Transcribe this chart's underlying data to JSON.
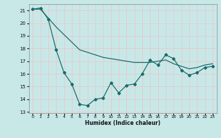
{
  "xlabel": "Humidex (Indice chaleur)",
  "ylabel": "",
  "background_color": "#c8e8e8",
  "grid_color": "#e8c8c8",
  "line_color": "#1a6b6b",
  "xlim": [
    -0.5,
    23.5
  ],
  "ylim": [
    13,
    21.5
  ],
  "yticks": [
    13,
    14,
    15,
    16,
    17,
    18,
    19,
    20,
    21
  ],
  "xticks": [
    0,
    1,
    2,
    3,
    4,
    5,
    6,
    7,
    8,
    9,
    10,
    11,
    12,
    13,
    14,
    15,
    16,
    17,
    18,
    19,
    20,
    21,
    22,
    23
  ],
  "line1_x": [
    0,
    1,
    2,
    3,
    4,
    5,
    6,
    7,
    8,
    9,
    10,
    11,
    12,
    13,
    14,
    15,
    16,
    17,
    18,
    19,
    20,
    21,
    22,
    23
  ],
  "line1_y": [
    21.1,
    21.1,
    20.4,
    19.7,
    19.1,
    18.5,
    17.9,
    17.7,
    17.5,
    17.3,
    17.2,
    17.1,
    17.0,
    16.9,
    16.9,
    16.9,
    17.0,
    17.1,
    16.8,
    16.6,
    16.4,
    16.5,
    16.7,
    16.8
  ],
  "line2_x": [
    0,
    1,
    2,
    3,
    4,
    5,
    6,
    7,
    8,
    9,
    10,
    11,
    12,
    13,
    14,
    15,
    16,
    17,
    18,
    19,
    20,
    21,
    22,
    23
  ],
  "line2_y": [
    21.1,
    21.2,
    20.3,
    17.9,
    16.1,
    15.2,
    13.6,
    13.5,
    14.0,
    14.1,
    15.3,
    14.5,
    15.1,
    15.2,
    16.0,
    17.1,
    16.7,
    17.5,
    17.2,
    16.3,
    15.9,
    16.1,
    16.5,
    16.6
  ]
}
